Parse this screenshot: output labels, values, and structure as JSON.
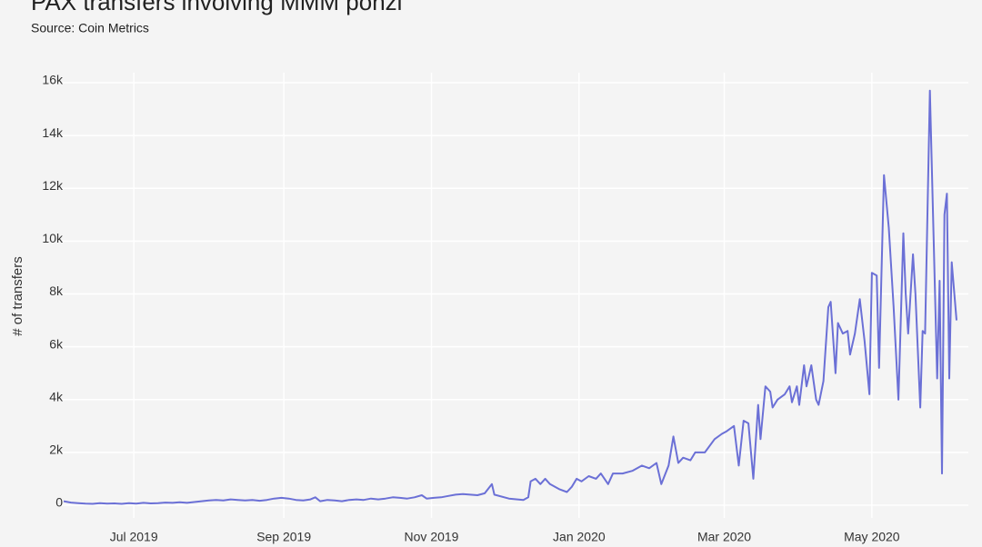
{
  "chart_data": {
    "type": "line",
    "title": "PAX transfers involving MMM ponzi",
    "subtitle": "Source: Coin Metrics",
    "ylabel": "# of transfers",
    "color": "#6b70d6",
    "grid": true,
    "x": [
      0,
      3,
      6,
      9,
      12,
      15,
      18,
      21,
      24,
      27,
      30,
      33,
      36,
      39,
      42,
      45,
      48,
      51,
      54,
      57,
      60,
      63,
      66,
      69,
      72,
      75,
      78,
      81,
      84,
      87,
      90,
      93,
      96,
      99,
      102,
      104,
      106,
      109,
      112,
      115,
      118,
      121,
      124,
      127,
      130,
      133,
      136,
      139,
      142,
      145,
      148,
      150,
      153,
      156,
      159,
      162,
      165,
      168,
      171,
      174,
      177,
      178,
      184,
      190,
      192,
      193,
      195,
      197,
      199,
      201,
      205,
      208,
      210,
      212,
      214,
      217,
      220,
      222,
      225,
      227,
      231,
      235,
      239,
      242,
      245,
      247,
      250,
      252,
      254,
      256,
      259,
      261,
      265,
      269,
      272,
      274,
      277,
      279,
      281,
      283,
      285,
      287,
      288,
      290,
      292,
      293,
      295,
      298,
      300,
      301,
      303,
      304,
      306,
      307,
      309,
      311,
      312,
      314,
      316,
      317,
      319,
      320,
      322,
      324,
      325,
      327,
      329,
      331,
      333,
      334,
      336,
      337,
      339,
      341,
      343,
      345,
      347,
      348,
      349,
      351,
      352,
      354,
      355,
      356,
      358,
      361,
      362,
      363,
      364,
      365,
      366,
      367,
      369
    ],
    "values": [
      150,
      100,
      80,
      60,
      50,
      80,
      60,
      70,
      50,
      80,
      60,
      90,
      70,
      80,
      100,
      90,
      110,
      90,
      120,
      150,
      180,
      200,
      180,
      220,
      200,
      180,
      200,
      170,
      200,
      250,
      280,
      250,
      200,
      180,
      220,
      300,
      150,
      200,
      180,
      150,
      200,
      220,
      200,
      250,
      220,
      250,
      300,
      280,
      250,
      300,
      380,
      250,
      280,
      300,
      350,
      400,
      420,
      400,
      380,
      450,
      800,
      400,
      250,
      200,
      300,
      900,
      1000,
      800,
      1000,
      800,
      600,
      500,
      700,
      1000,
      900,
      1100,
      1000,
      1200,
      800,
      1200,
      1200,
      1300,
      1500,
      1400,
      1600,
      800,
      1500,
      2600,
      1600,
      1800,
      1700,
      2000,
      2000,
      2500,
      2700,
      2800,
      3000,
      1500,
      3200,
      3100,
      1000,
      3800,
      2500,
      4500,
      4300,
      3700,
      4000,
      4200,
      4500,
      3900,
      4500,
      3800,
      5300,
      4500,
      5300,
      4000,
      3800,
      4700,
      7500,
      7700,
      5000,
      6900,
      6500,
      6600,
      5700,
      6500,
      7800,
      6200,
      4200,
      8800,
      8700,
      5200,
      12500,
      10500,
      7500,
      4000,
      10300,
      8000,
      6500,
      9500,
      8000,
      3700,
      6600,
      6500,
      15700,
      4800,
      8500,
      1200,
      11000,
      11800,
      4800,
      9200,
      7000
    ],
    "xlim": [
      0,
      369
    ],
    "xticks": [
      {
        "value": 29,
        "label": "Jul 2019"
      },
      {
        "value": 91,
        "label": "Sep 2019"
      },
      {
        "value": 152,
        "label": "Nov 2019"
      },
      {
        "value": 213,
        "label": "Jan 2020"
      },
      {
        "value": 273,
        "label": "Mar 2020"
      },
      {
        "value": 334,
        "label": "May 2020"
      }
    ],
    "ylim": [
      0,
      16000
    ],
    "yticks": [
      0,
      {
        "value": 2000,
        "label": "2k"
      },
      {
        "value": 4000,
        "label": "4k"
      },
      {
        "value": 6000,
        "label": "6k"
      },
      {
        "value": 8000,
        "label": "8k"
      },
      {
        "value": 10000,
        "label": "10k"
      },
      {
        "value": 12000,
        "label": "12k"
      },
      {
        "value": 14000,
        "label": "14k"
      },
      {
        "value": 16000,
        "label": "16k"
      }
    ]
  }
}
